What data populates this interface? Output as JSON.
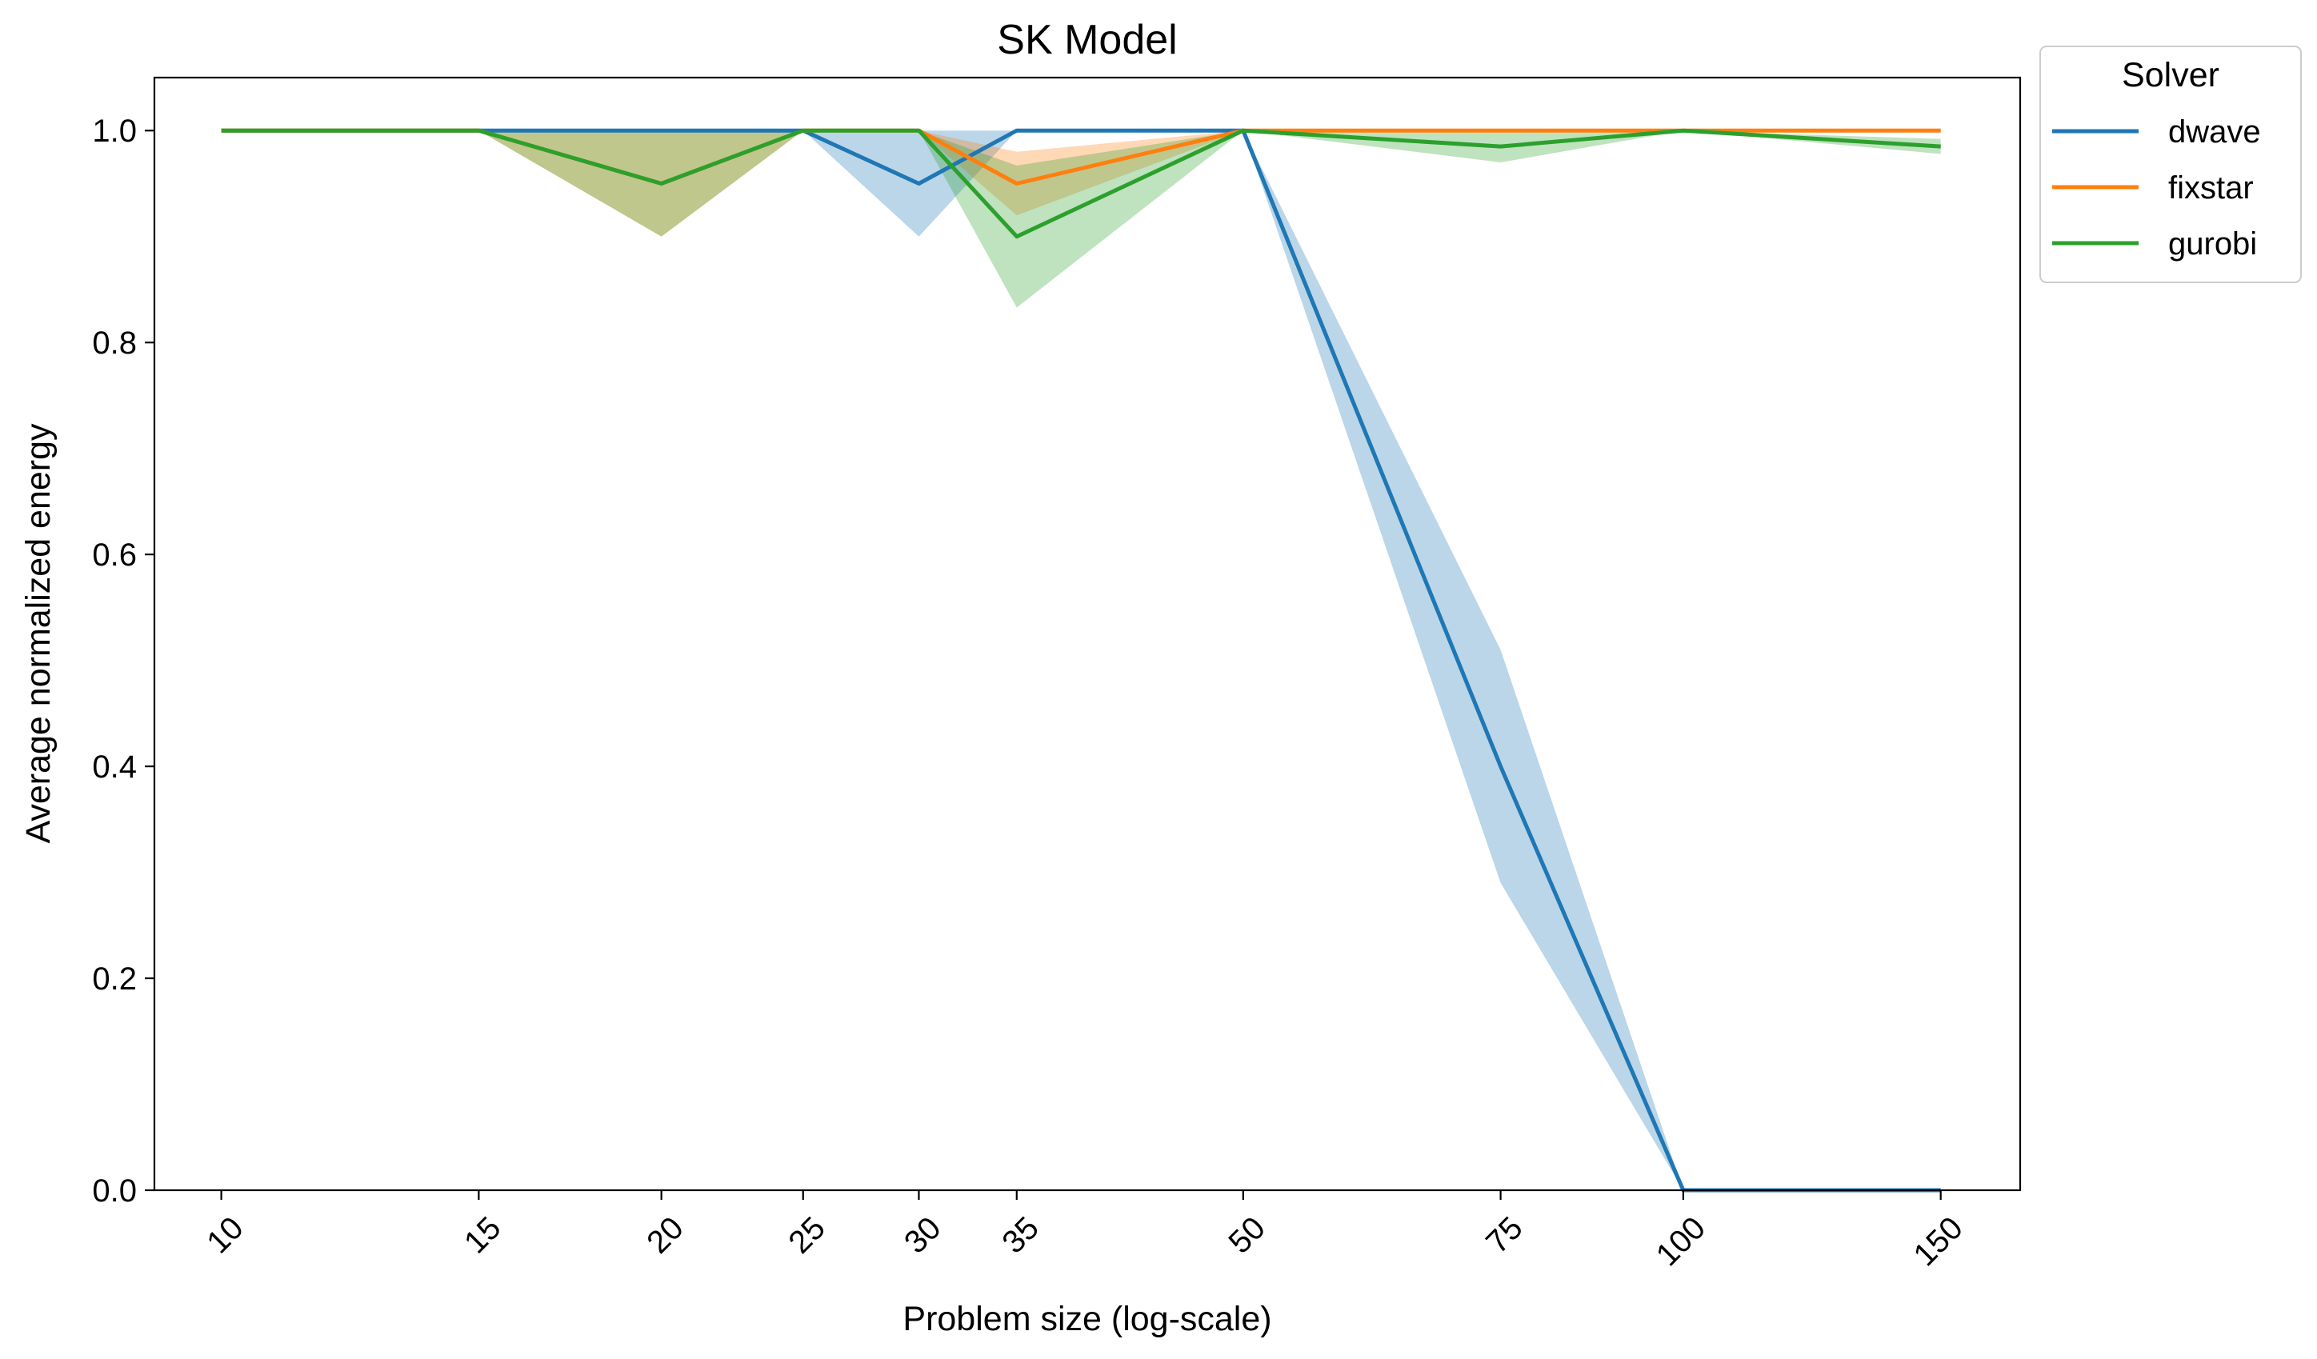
{
  "chart_data": {
    "type": "line",
    "title": "SK Model",
    "xlabel": "Problem size (log-scale)",
    "ylabel": "Average normalized energy",
    "x_scale": "log",
    "x": [
      10,
      15,
      20,
      25,
      30,
      35,
      50,
      75,
      100,
      150
    ],
    "x_tick_labels": [
      "10",
      "15",
      "20",
      "25",
      "30",
      "35",
      "50",
      "75",
      "100",
      "150"
    ],
    "xlim": [
      9,
      170
    ],
    "ylim": [
      0.0,
      1.05
    ],
    "y_ticks": [
      0.0,
      0.2,
      0.4,
      0.6,
      0.8,
      1.0
    ],
    "y_tick_labels": [
      "0.0",
      "0.2",
      "0.4",
      "0.6",
      "0.8",
      "1.0"
    ],
    "grid": false,
    "legend": {
      "title": "Solver",
      "placement": "outside-top-right"
    },
    "series": [
      {
        "name": "dwave",
        "color": "#1f77b4",
        "values": [
          1.0,
          1.0,
          1.0,
          1.0,
          0.95,
          1.0,
          1.0,
          0.4,
          0.0,
          0.0
        ],
        "lower": [
          1.0,
          1.0,
          1.0,
          1.0,
          0.9,
          1.0,
          1.0,
          0.29,
          0.0,
          0.0
        ],
        "upper": [
          1.0,
          1.0,
          1.0,
          1.0,
          1.0,
          1.0,
          1.0,
          0.51,
          0.0,
          0.0
        ]
      },
      {
        "name": "fixstar",
        "color": "#ff7f0e",
        "values": [
          1.0,
          1.0,
          0.95,
          1.0,
          1.0,
          0.95,
          1.0,
          1.0,
          1.0,
          1.0
        ],
        "lower": [
          1.0,
          1.0,
          0.9,
          1.0,
          1.0,
          0.92,
          1.0,
          1.0,
          1.0,
          1.0
        ],
        "upper": [
          1.0,
          1.0,
          1.0,
          1.0,
          1.0,
          0.98,
          1.0,
          1.0,
          1.0,
          1.0
        ]
      },
      {
        "name": "gurobi",
        "color": "#2ca02c",
        "values": [
          1.0,
          1.0,
          0.95,
          1.0,
          1.0,
          0.9,
          1.0,
          0.985,
          1.0,
          0.985
        ],
        "lower": [
          1.0,
          1.0,
          0.9,
          1.0,
          1.0,
          0.833,
          1.0,
          0.97,
          1.0,
          0.978
        ],
        "upper": [
          1.0,
          1.0,
          1.0,
          1.0,
          1.0,
          0.967,
          1.0,
          1.0,
          1.0,
          0.992
        ]
      }
    ]
  }
}
